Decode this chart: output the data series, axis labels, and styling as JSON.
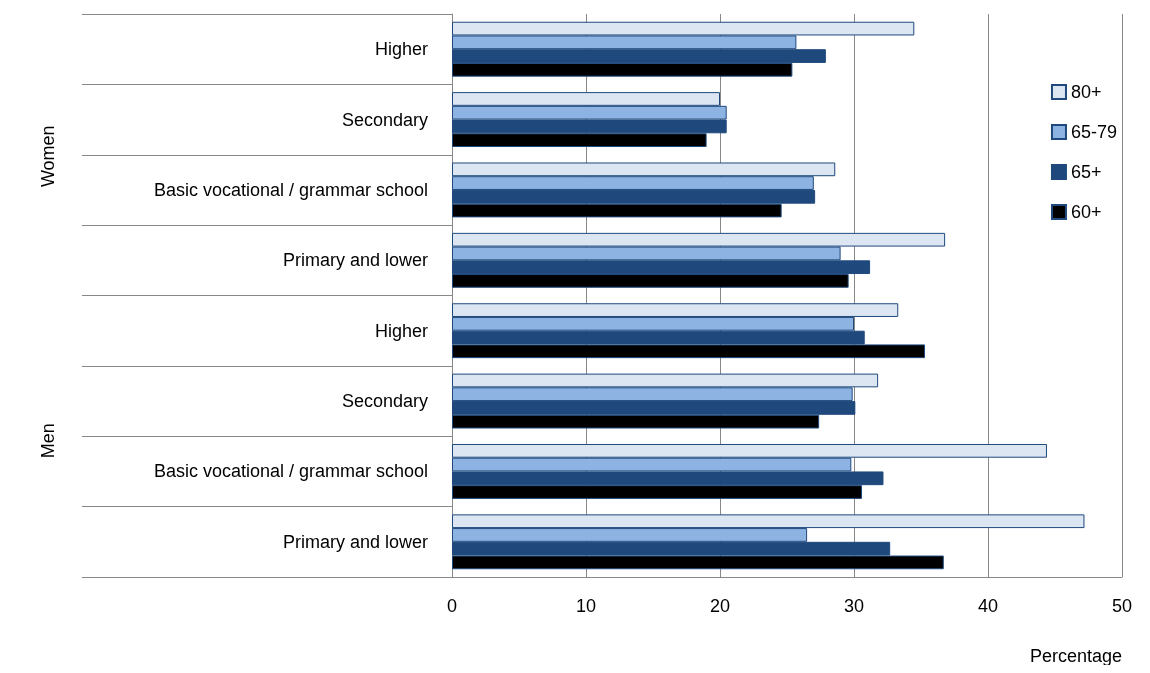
{
  "chart_data": {
    "type": "bar",
    "orientation": "horizontal",
    "xlabel": "Percentage",
    "categories": [
      "Higher",
      "Secondary",
      "Basic vocational / grammar school",
      "Primary and lower",
      "Higher",
      "Secondary",
      "Basic vocational / grammar school",
      "Primary and lower"
    ],
    "annotations": [
      "Women",
      "Men"
    ],
    "series": [
      {
        "name": "80+",
        "color": "#dce6f2",
        "values": [
          34.5,
          20.0,
          28.6,
          36.8,
          33.3,
          31.8,
          44.4,
          47.2
        ]
      },
      {
        "name": "65-79",
        "color": "#8db3e2",
        "values": [
          25.7,
          20.5,
          27.0,
          29.0,
          30.0,
          29.9,
          29.8,
          26.5
        ]
      },
      {
        "name": "65+",
        "color": "#1f497d",
        "values": [
          27.9,
          20.5,
          27.1,
          31.2,
          30.8,
          30.1,
          32.2,
          32.7
        ]
      },
      {
        "name": "60+",
        "color": "#000000",
        "values": [
          25.4,
          19.0,
          24.6,
          29.6,
          35.3,
          27.4,
          30.6,
          36.7
        ]
      }
    ],
    "xlim": [
      0,
      50
    ],
    "xticks": [
      0,
      10,
      20,
      30,
      40,
      50
    ],
    "grid": "x",
    "legend": "right"
  }
}
